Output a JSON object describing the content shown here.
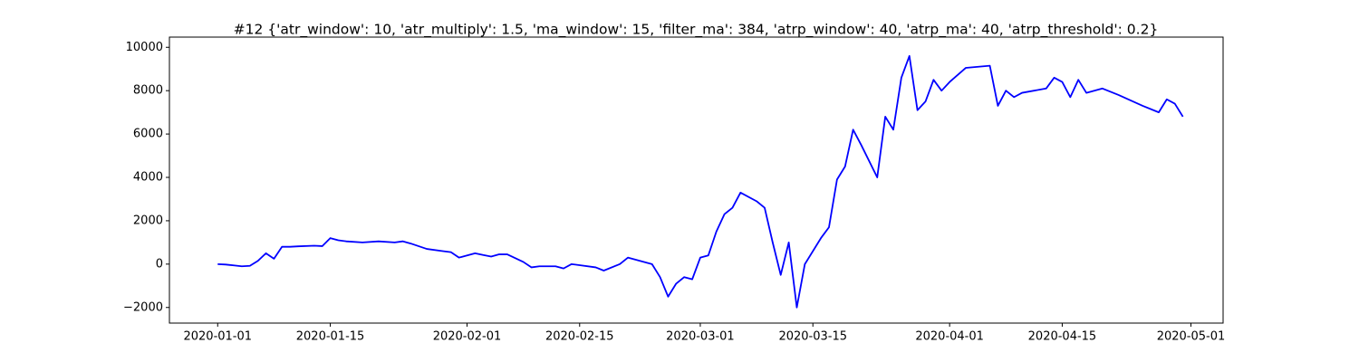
{
  "chart_data": {
    "type": "line",
    "title": "#12 {'atr_window': 10, 'atr_multiply': 1.5, 'ma_window': 15, 'filter_ma': 384, 'atrp_window': 40, 'atrp_ma': 40, 'atrp_threshold': 0.2}",
    "color": "#0000ff",
    "x": [
      "2020-01-01",
      "2020-01-02",
      "2020-01-03",
      "2020-01-04",
      "2020-01-05",
      "2020-01-06",
      "2020-01-07",
      "2020-01-08",
      "2020-01-09",
      "2020-01-10",
      "2020-01-11",
      "2020-01-13",
      "2020-01-14",
      "2020-01-15",
      "2020-01-16",
      "2020-01-17",
      "2020-01-19",
      "2020-01-21",
      "2020-01-23",
      "2020-01-24",
      "2020-01-25",
      "2020-01-27",
      "2020-01-29",
      "2020-01-30",
      "2020-01-31",
      "2020-02-02",
      "2020-02-03",
      "2020-02-04",
      "2020-02-05",
      "2020-02-06",
      "2020-02-08",
      "2020-02-09",
      "2020-02-10",
      "2020-02-12",
      "2020-02-13",
      "2020-02-14",
      "2020-02-17",
      "2020-02-18",
      "2020-02-20",
      "2020-02-21",
      "2020-02-24",
      "2020-02-25",
      "2020-02-26",
      "2020-02-27",
      "2020-02-28",
      "2020-02-29",
      "2020-03-01",
      "2020-03-02",
      "2020-03-03",
      "2020-03-04",
      "2020-03-05",
      "2020-03-06",
      "2020-03-08",
      "2020-03-09",
      "2020-03-10",
      "2020-03-11",
      "2020-03-12",
      "2020-03-13",
      "2020-03-14",
      "2020-03-16",
      "2020-03-17",
      "2020-03-18",
      "2020-03-19",
      "2020-03-20",
      "2020-03-21",
      "2020-03-23",
      "2020-03-24",
      "2020-03-25",
      "2020-03-26",
      "2020-03-27",
      "2020-03-28",
      "2020-03-29",
      "2020-03-30",
      "2020-03-31",
      "2020-04-01",
      "2020-04-03",
      "2020-04-06",
      "2020-04-07",
      "2020-04-08",
      "2020-04-09",
      "2020-04-10",
      "2020-04-13",
      "2020-04-14",
      "2020-04-15",
      "2020-04-16",
      "2020-04-17",
      "2020-04-18",
      "2020-04-20",
      "2020-04-22",
      "2020-04-25",
      "2020-04-27",
      "2020-04-28",
      "2020-04-29",
      "2020-04-30"
    ],
    "values": [
      0,
      -20,
      -60,
      -100,
      -80,
      150,
      500,
      250,
      800,
      800,
      820,
      850,
      830,
      1200,
      1100,
      1050,
      1000,
      1050,
      1000,
      1050,
      950,
      700,
      600,
      550,
      300,
      500,
      420,
      350,
      450,
      450,
      100,
      -150,
      -100,
      -100,
      -200,
      0,
      -150,
      -300,
      0,
      300,
      0,
      -600,
      -1500,
      -900,
      -600,
      -700,
      300,
      400,
      1500,
      2300,
      2600,
      3300,
      2900,
      2600,
      1000,
      -500,
      1000,
      -2000,
      0,
      1200,
      1700,
      3900,
      4500,
      6200,
      5500,
      4000,
      6800,
      6200,
      8600,
      9600,
      7100,
      7500,
      8500,
      8000,
      8400,
      9050,
      9150,
      7300,
      8000,
      7700,
      7900,
      8100,
      8600,
      8400,
      7700,
      8500,
      7900,
      8100,
      7800,
      7300,
      7000,
      7600,
      7400,
      6800
    ],
    "xlim": [
      "2019-12-26",
      "2020-05-05"
    ],
    "xticks": [
      "2020-01-01",
      "2020-01-15",
      "2020-02-01",
      "2020-02-15",
      "2020-03-01",
      "2020-03-15",
      "2020-04-01",
      "2020-04-15",
      "2020-05-01"
    ],
    "ylim": [
      -2720,
      10470
    ],
    "yticks": [
      {
        "value": -2000,
        "label": "−2000"
      },
      0,
      2000,
      4000,
      6000,
      8000,
      10000
    ]
  }
}
